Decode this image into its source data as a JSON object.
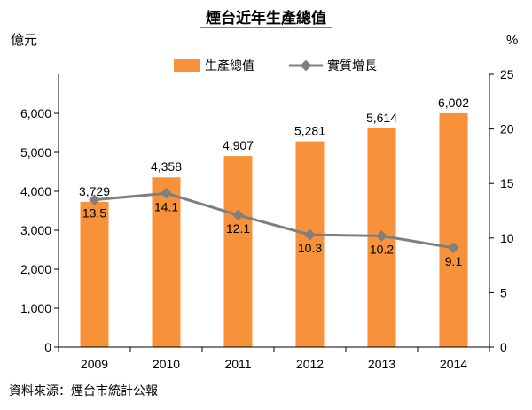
{
  "chart_data": {
    "type": "bar-line-combo",
    "title": "煙台近年生產總值",
    "categories": [
      "2009",
      "2010",
      "2011",
      "2012",
      "2013",
      "2014"
    ],
    "series": [
      {
        "name": "生產總值",
        "type": "bar",
        "axis": "left",
        "values": [
          3729,
          4358,
          4907,
          5281,
          5614,
          6002
        ],
        "labels": [
          "3,729",
          "4,358",
          "4,907",
          "5,281",
          "5,614",
          "6,002"
        ],
        "color": "#F7923A"
      },
      {
        "name": "實質增長",
        "type": "line",
        "axis": "right",
        "values": [
          13.5,
          14.1,
          12.1,
          10.3,
          10.2,
          9.1
        ],
        "labels": [
          "13.5",
          "14.1",
          "12.1",
          "10.3",
          "10.2",
          "9.1"
        ],
        "color": "#7F7F7F"
      }
    ],
    "y_left": {
      "label": "億元",
      "min": 0,
      "max": 7000,
      "ticks": [
        "0",
        "1,000",
        "2,000",
        "3,000",
        "4,000",
        "5,000",
        "6,000"
      ]
    },
    "y_right": {
      "label": "%",
      "min": 0,
      "max": 25,
      "ticks": [
        "0",
        "5",
        "10",
        "15",
        "20",
        "25"
      ]
    },
    "grid": false,
    "legend": "top"
  },
  "source": "資料來源：煙台市統計公報"
}
